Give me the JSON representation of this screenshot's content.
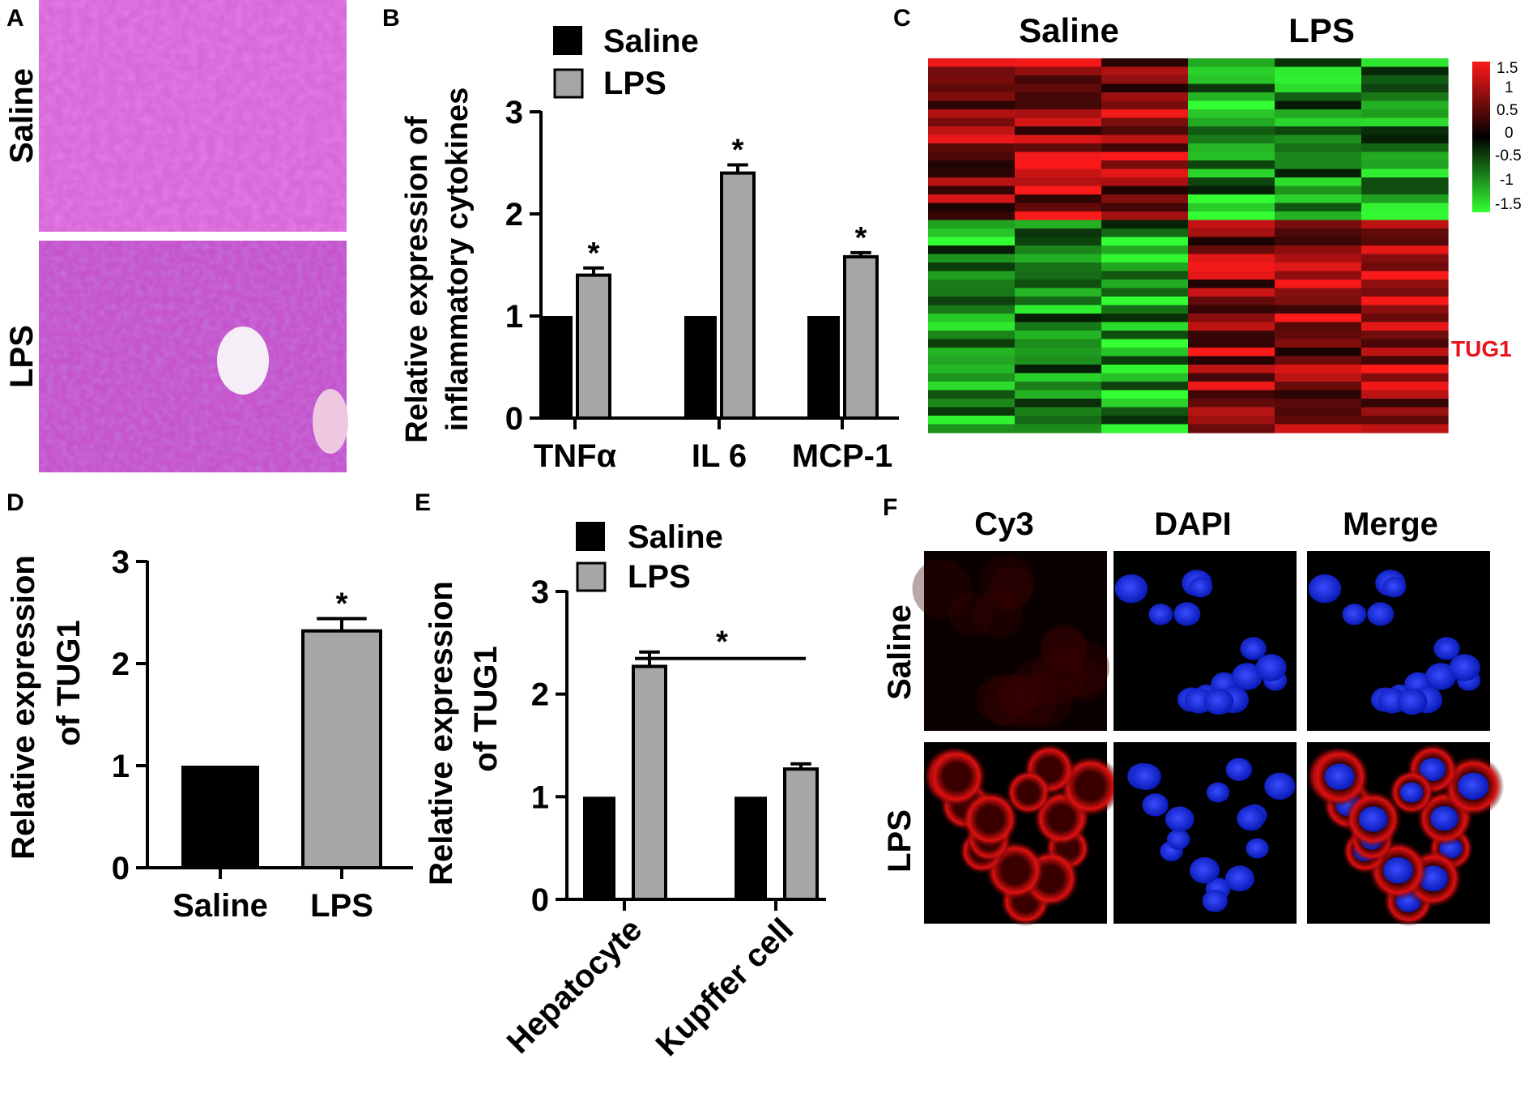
{
  "panels": {
    "A": {
      "letter": "A",
      "row_labels": [
        "Saline",
        "LPS"
      ]
    },
    "C": {
      "letter": "C",
      "group_labels": [
        "Saline",
        "LPS"
      ],
      "highlight_label": "TUG1",
      "highlight_color": "#e8141b",
      "colorbar_ticks": [
        "1.5",
        "1",
        "0.5",
        "0",
        "-0.5",
        "-1",
        "-1.5"
      ],
      "colors": {
        "high": "#ff1a1a",
        "mid": "#000000",
        "low": "#33ff33"
      }
    },
    "F": {
      "letter": "F",
      "column_labels": [
        "Cy3",
        "DAPI",
        "Merge"
      ],
      "row_labels": [
        "Saline",
        "LPS"
      ]
    }
  },
  "chart_data": [
    {
      "panel": "B",
      "letter": "B",
      "type": "bar",
      "ylabel": [
        "Relative expression of",
        "inflammatory cytokines"
      ],
      "xlabel": "",
      "categories": [
        "TNFα",
        "IL 6",
        "MCP-1"
      ],
      "series": [
        {
          "name": "Saline",
          "color": "#000000",
          "values": [
            1.0,
            1.0,
            1.0
          ],
          "errors": [
            0,
            0,
            0
          ]
        },
        {
          "name": "LPS",
          "color": "#a6a6a6",
          "values": [
            1.4,
            2.4,
            1.58
          ],
          "errors": [
            0.07,
            0.08,
            0.04
          ]
        }
      ],
      "significance": [
        "*",
        "*",
        "*"
      ],
      "yticks": [
        "0",
        "1",
        "2",
        "3"
      ],
      "ylim": [
        0,
        3
      ],
      "legend": "top"
    },
    {
      "panel": "D",
      "letter": "D",
      "type": "bar",
      "ylabel": [
        "Relative expression",
        "of TUG1"
      ],
      "xlabel": "",
      "categories": [
        "Saline",
        "LPS"
      ],
      "values": [
        1.0,
        2.32
      ],
      "errors": [
        0,
        0.12
      ],
      "colors": [
        "#000000",
        "#a6a6a6"
      ],
      "significance": [
        "",
        "*"
      ],
      "yticks": [
        "0",
        "1",
        "2",
        "3"
      ],
      "ylim": [
        0,
        3
      ]
    },
    {
      "panel": "E",
      "letter": "E",
      "type": "bar",
      "ylabel": [
        "Relative expression",
        "of TUG1"
      ],
      "xlabel": "",
      "categories": [
        "Hepatocyte",
        "Kupffer cell"
      ],
      "series": [
        {
          "name": "Saline",
          "color": "#000000",
          "values": [
            1.0,
            1.0
          ],
          "errors": [
            0,
            0
          ]
        },
        {
          "name": "LPS",
          "color": "#a6a6a6",
          "values": [
            2.27,
            1.27
          ],
          "errors": [
            0.14,
            0.05
          ]
        }
      ],
      "significance_bracket": "*",
      "yticks": [
        "0",
        "1",
        "2",
        "3"
      ],
      "ylim": [
        0,
        3
      ],
      "legend": "top"
    }
  ]
}
